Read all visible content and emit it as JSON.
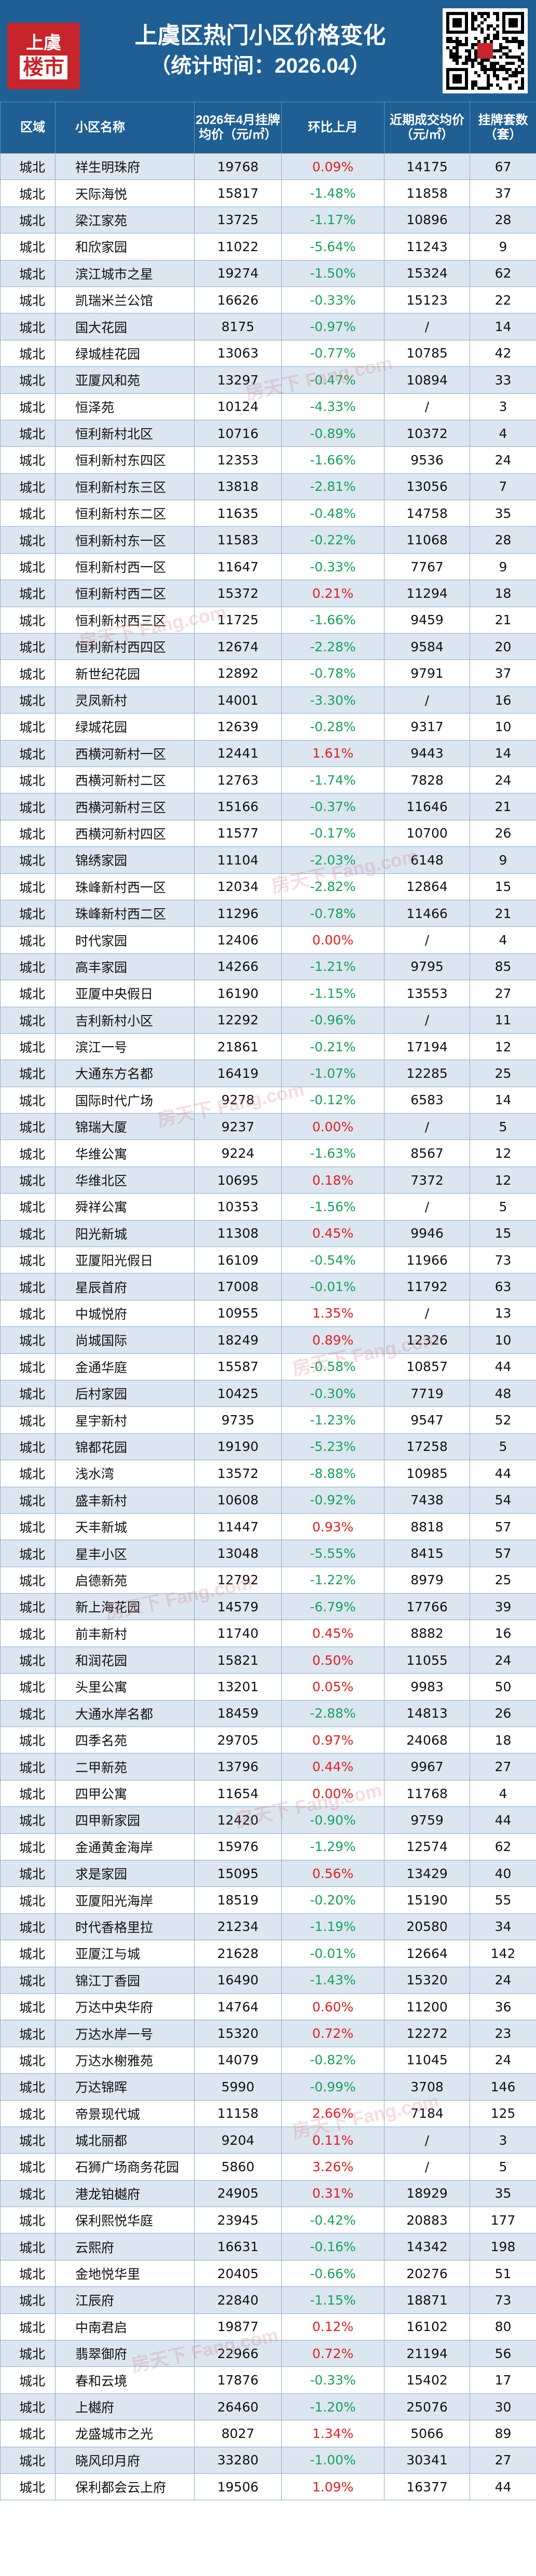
{
  "header": {
    "logo_line1": "上虞",
    "logo_line2": "楼市",
    "title": "上虞区热门小区价格变化",
    "subtitle": "（统计时间：2026.04）"
  },
  "watermark": "房天下 Fang.com",
  "table": {
    "headers": [
      "区域",
      "小区名称",
      "2026年4月挂牌均价（元/㎡）",
      "环比上月",
      "近期成交均价（元/㎡）",
      "挂牌套数（套）"
    ],
    "rows": [
      [
        "城北",
        "祥生明珠府",
        "19768",
        "0.09%",
        "14175",
        "67"
      ],
      [
        "城北",
        "天际海悦",
        "15817",
        "-1.48%",
        "11858",
        "37"
      ],
      [
        "城北",
        "梁江家苑",
        "13725",
        "-1.17%",
        "10896",
        "28"
      ],
      [
        "城北",
        "和欣家园",
        "11022",
        "-5.64%",
        "11243",
        "9"
      ],
      [
        "城北",
        "滨江城市之星",
        "19274",
        "-1.50%",
        "15324",
        "62"
      ],
      [
        "城北",
        "凯瑞米兰公馆",
        "16626",
        "-0.33%",
        "15123",
        "22"
      ],
      [
        "城北",
        "国大花园",
        "8175",
        "-0.97%",
        "/",
        "14"
      ],
      [
        "城北",
        "绿城桂花园",
        "13063",
        "-0.77%",
        "10785",
        "42"
      ],
      [
        "城北",
        "亚厦风和苑",
        "13297",
        "-0.47%",
        "10894",
        "33"
      ],
      [
        "城北",
        "恒泽苑",
        "10124",
        "-4.33%",
        "/",
        "3"
      ],
      [
        "城北",
        "恒利新村北区",
        "10716",
        "-0.89%",
        "10372",
        "4"
      ],
      [
        "城北",
        "恒利新村东四区",
        "12353",
        "-1.66%",
        "9536",
        "24"
      ],
      [
        "城北",
        "恒利新村东三区",
        "13818",
        "-2.81%",
        "13056",
        "7"
      ],
      [
        "城北",
        "恒利新村东二区",
        "11635",
        "-0.48%",
        "14758",
        "35"
      ],
      [
        "城北",
        "恒利新村东一区",
        "11583",
        "-0.22%",
        "11068",
        "28"
      ],
      [
        "城北",
        "恒利新村西一区",
        "11647",
        "-0.33%",
        "7767",
        "9"
      ],
      [
        "城北",
        "恒利新村西二区",
        "15372",
        "0.21%",
        "11294",
        "18"
      ],
      [
        "城北",
        "恒利新村西三区",
        "11725",
        "-1.66%",
        "9459",
        "21"
      ],
      [
        "城北",
        "恒利新村西四区",
        "12674",
        "-2.28%",
        "9584",
        "20"
      ],
      [
        "城北",
        "新世纪花园",
        "12892",
        "-0.78%",
        "9791",
        "37"
      ],
      [
        "城北",
        "灵凤新村",
        "14001",
        "-3.30%",
        "/",
        "16"
      ],
      [
        "城北",
        "绿城花园",
        "12639",
        "-0.28%",
        "9317",
        "10"
      ],
      [
        "城北",
        "西横河新村一区",
        "12441",
        "1.61%",
        "9443",
        "14"
      ],
      [
        "城北",
        "西横河新村二区",
        "12763",
        "-1.74%",
        "7828",
        "24"
      ],
      [
        "城北",
        "西横河新村三区",
        "15166",
        "-0.37%",
        "11646",
        "21"
      ],
      [
        "城北",
        "西横河新村四区",
        "11577",
        "-0.17%",
        "10700",
        "26"
      ],
      [
        "城北",
        "锦绣家园",
        "11104",
        "-2.03%",
        "6148",
        "9"
      ],
      [
        "城北",
        "珠峰新村西一区",
        "12034",
        "-2.82%",
        "12864",
        "15"
      ],
      [
        "城北",
        "珠峰新村西二区",
        "11296",
        "-0.78%",
        "11466",
        "21"
      ],
      [
        "城北",
        "时代家园",
        "12406",
        "0.00%",
        "/",
        "4"
      ],
      [
        "城北",
        "高丰家园",
        "14266",
        "-1.21%",
        "9795",
        "85"
      ],
      [
        "城北",
        "亚厦中央假日",
        "16190",
        "-1.15%",
        "13553",
        "27"
      ],
      [
        "城北",
        "吉利新村小区",
        "12292",
        "-0.96%",
        "/",
        "11"
      ],
      [
        "城北",
        "滨江一号",
        "21861",
        "-0.21%",
        "17194",
        "12"
      ],
      [
        "城北",
        "大通东方名都",
        "16419",
        "-1.07%",
        "12285",
        "25"
      ],
      [
        "城北",
        "国际时代广场",
        "9278",
        "-0.12%",
        "6583",
        "14"
      ],
      [
        "城北",
        "锦瑞大厦",
        "9237",
        "0.00%",
        "/",
        "5"
      ],
      [
        "城北",
        "华维公寓",
        "9224",
        "-1.63%",
        "8567",
        "12"
      ],
      [
        "城北",
        "华维北区",
        "10695",
        "0.18%",
        "7372",
        "12"
      ],
      [
        "城北",
        "舜祥公寓",
        "10353",
        "-1.56%",
        "/",
        "5"
      ],
      [
        "城北",
        "阳光新城",
        "11308",
        "0.45%",
        "9946",
        "15"
      ],
      [
        "城北",
        "亚厦阳光假日",
        "16109",
        "-0.54%",
        "11966",
        "73"
      ],
      [
        "城北",
        "星辰首府",
        "17008",
        "-0.01%",
        "11792",
        "63"
      ],
      [
        "城北",
        "中城悦府",
        "10955",
        "1.35%",
        "/",
        "13"
      ],
      [
        "城北",
        "尚城国际",
        "18249",
        "0.89%",
        "12326",
        "10"
      ],
      [
        "城北",
        "金通华庭",
        "15587",
        "-0.58%",
        "10857",
        "44"
      ],
      [
        "城北",
        "后村家园",
        "10425",
        "-0.30%",
        "7719",
        "48"
      ],
      [
        "城北",
        "星宇新村",
        "9735",
        "-1.23%",
        "9547",
        "52"
      ],
      [
        "城北",
        "锦都花园",
        "19190",
        "-5.23%",
        "17258",
        "5"
      ],
      [
        "城北",
        "浅水湾",
        "13572",
        "-8.88%",
        "10985",
        "44"
      ],
      [
        "城北",
        "盛丰新村",
        "10608",
        "-0.92%",
        "7438",
        "54"
      ],
      [
        "城北",
        "天丰新城",
        "11447",
        "0.93%",
        "8818",
        "57"
      ],
      [
        "城北",
        "星丰小区",
        "13048",
        "-5.55%",
        "8415",
        "57"
      ],
      [
        "城北",
        "启德新苑",
        "12792",
        "-1.22%",
        "8979",
        "25"
      ],
      [
        "城北",
        "新上海花园",
        "14579",
        "-6.79%",
        "17766",
        "39"
      ],
      [
        "城北",
        "前丰新村",
        "11740",
        "0.45%",
        "8882",
        "16"
      ],
      [
        "城北",
        "和润花园",
        "15821",
        "0.50%",
        "11055",
        "24"
      ],
      [
        "城北",
        "头里公寓",
        "13201",
        "0.05%",
        "9983",
        "50"
      ],
      [
        "城北",
        "大通水岸名都",
        "18459",
        "-2.88%",
        "14813",
        "26"
      ],
      [
        "城北",
        "四季名苑",
        "29705",
        "0.97%",
        "24068",
        "18"
      ],
      [
        "城北",
        "二甲新苑",
        "13796",
        "0.44%",
        "9967",
        "27"
      ],
      [
        "城北",
        "四甲公寓",
        "11654",
        "0.00%",
        "11768",
        "4"
      ],
      [
        "城北",
        "四甲新家园",
        "12420",
        "-0.90%",
        "9759",
        "44"
      ],
      [
        "城北",
        "金通黄金海岸",
        "15976",
        "-1.29%",
        "12574",
        "62"
      ],
      [
        "城北",
        "求是家园",
        "15095",
        "0.56%",
        "13429",
        "40"
      ],
      [
        "城北",
        "亚厦阳光海岸",
        "18519",
        "-0.20%",
        "15190",
        "55"
      ],
      [
        "城北",
        "时代香格里拉",
        "21234",
        "-1.19%",
        "20580",
        "34"
      ],
      [
        "城北",
        "亚厦江与城",
        "21628",
        "-0.01%",
        "12664",
        "142"
      ],
      [
        "城北",
        "锦江丁香园",
        "16490",
        "-1.43%",
        "15320",
        "24"
      ],
      [
        "城北",
        "万达中央华府",
        "14764",
        "0.60%",
        "11200",
        "36"
      ],
      [
        "城北",
        "万达水岸一号",
        "15320",
        "0.72%",
        "12272",
        "23"
      ],
      [
        "城北",
        "万达水榭雅苑",
        "14079",
        "-0.82%",
        "11045",
        "24"
      ],
      [
        "城北",
        "万达锦晖",
        "5990",
        "-0.99%",
        "3708",
        "146"
      ],
      [
        "城北",
        "帝景现代城",
        "11158",
        "2.66%",
        "7184",
        "125"
      ],
      [
        "城北",
        "城北丽都",
        "9204",
        "0.11%",
        "/",
        "3"
      ],
      [
        "城北",
        "石狮广场商务花园",
        "5860",
        "3.26%",
        "/",
        "5"
      ],
      [
        "城北",
        "港龙铂樾府",
        "24905",
        "0.31%",
        "18929",
        "35"
      ],
      [
        "城北",
        "保利熙悦华庭",
        "23945",
        "-0.42%",
        "20883",
        "177"
      ],
      [
        "城北",
        "云熙府",
        "16631",
        "-0.16%",
        "14342",
        "198"
      ],
      [
        "城北",
        "金地悦华里",
        "20405",
        "-0.66%",
        "20276",
        "51"
      ],
      [
        "城北",
        "江辰府",
        "22840",
        "-1.15%",
        "18871",
        "73"
      ],
      [
        "城北",
        "中南君启",
        "19877",
        "0.12%",
        "16102",
        "80"
      ],
      [
        "城北",
        "翡翠御府",
        "22966",
        "0.72%",
        "21194",
        "56"
      ],
      [
        "城北",
        "春和云境",
        "17876",
        "-0.33%",
        "15402",
        "17"
      ],
      [
        "城北",
        "上樾府",
        "26460",
        "-1.20%",
        "25076",
        "30"
      ],
      [
        "城北",
        "龙盛城市之光",
        "8027",
        "1.34%",
        "5066",
        "89"
      ],
      [
        "城北",
        "晓风印月府",
        "33280",
        "-1.00%",
        "30341",
        "27"
      ],
      [
        "城北",
        "保利都会云上府",
        "19506",
        "1.09%",
        "16377",
        "44"
      ]
    ]
  }
}
